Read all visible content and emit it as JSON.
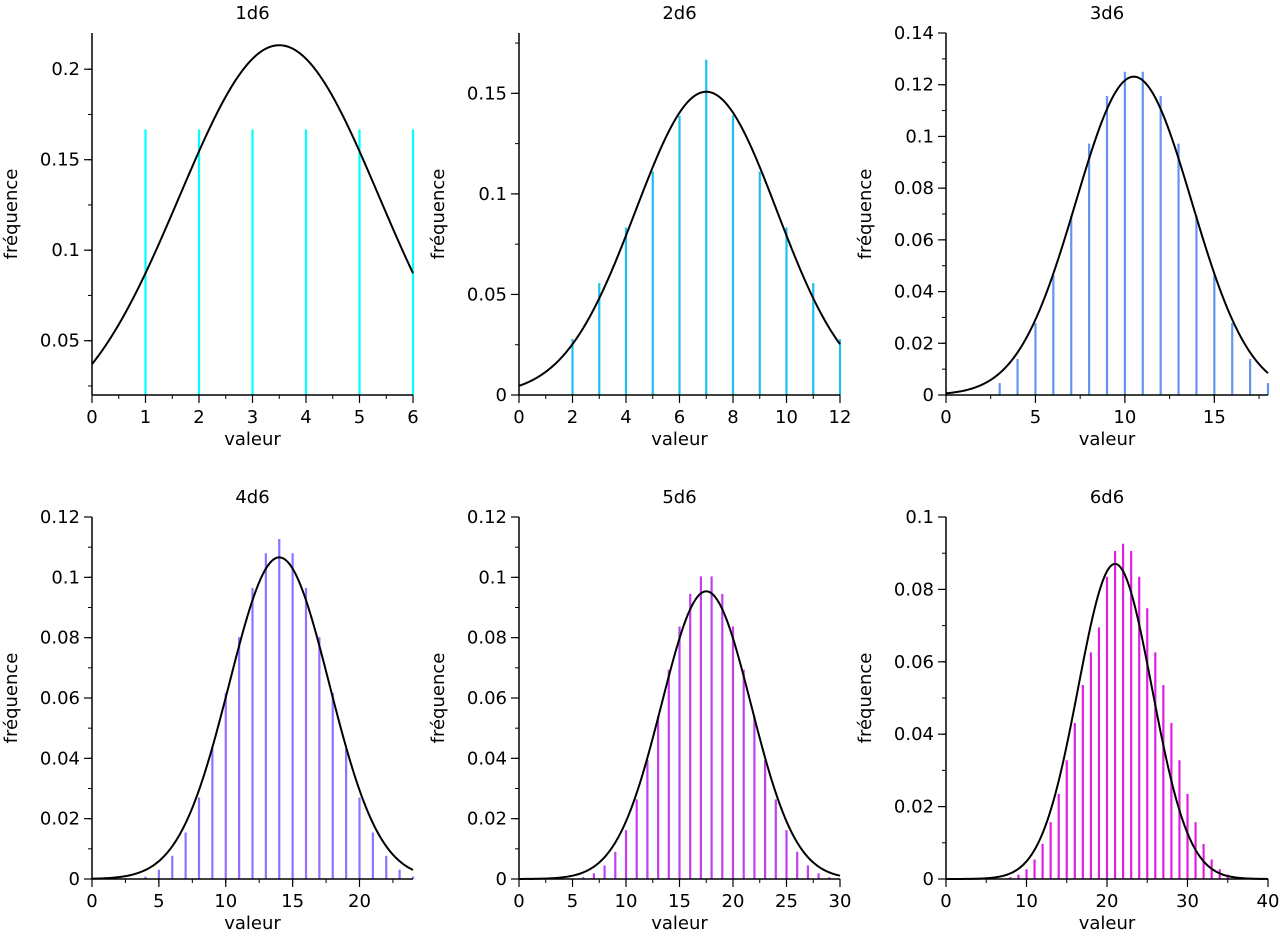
{
  "chart_data": [
    {
      "type": "bar",
      "title": "1d6",
      "xlabel": "valeur",
      "ylabel": "fréquence",
      "xlim": [
        0,
        6
      ],
      "ylim": [
        0.02,
        0.22
      ],
      "xticks": [
        0,
        1,
        2,
        3,
        4,
        5,
        6
      ],
      "xtick_labels": [
        "0",
        "1",
        "2",
        "3",
        "4",
        "5",
        "6"
      ],
      "yticks": [
        0.05,
        0.1,
        0.15,
        0.2
      ],
      "ytick_labels": [
        "0.05",
        "0.1",
        "0.15",
        "0.2"
      ],
      "bar_color": "#00ffff",
      "bars": {
        "x": [
          1,
          2,
          3,
          4,
          5,
          6
        ],
        "values": [
          0.1667,
          0.1667,
          0.1667,
          0.1667,
          0.1667,
          0.1667
        ]
      },
      "curve": {
        "type": "normal",
        "mean": 3.5,
        "sd": 1.8708,
        "color": "#000000"
      }
    },
    {
      "type": "bar",
      "title": "2d6",
      "xlabel": "valeur",
      "ylabel": "fréquence",
      "xlim": [
        0,
        12
      ],
      "ylim": [
        0,
        0.18
      ],
      "xticks": [
        0,
        2,
        4,
        6,
        8,
        10,
        12
      ],
      "xtick_labels": [
        "0",
        "2",
        "4",
        "6",
        "8",
        "10",
        "12"
      ],
      "yticks": [
        0,
        0.05,
        0.1,
        0.15
      ],
      "ytick_labels": [
        "0",
        "0.05",
        "0.1",
        "0.15"
      ],
      "bar_color": "#1fbfef",
      "bars": {
        "x": [
          2,
          3,
          4,
          5,
          6,
          7,
          8,
          9,
          10,
          11,
          12
        ],
        "values": [
          0.0278,
          0.0556,
          0.0833,
          0.1111,
          0.1389,
          0.1667,
          0.1389,
          0.1111,
          0.0833,
          0.0556,
          0.0278
        ]
      },
      "curve": {
        "type": "normal",
        "mean": 7,
        "sd": 2.6458,
        "color": "#000000"
      }
    },
    {
      "type": "bar",
      "title": "3d6",
      "xlabel": "valeur",
      "ylabel": "fréquence",
      "xlim": [
        0,
        18
      ],
      "ylim": [
        0,
        0.14
      ],
      "xticks": [
        0,
        5,
        10,
        15
      ],
      "xtick_labels": [
        "0",
        "5",
        "10",
        "15"
      ],
      "yticks": [
        0,
        0.02,
        0.04,
        0.06,
        0.08,
        0.1,
        0.12,
        0.14
      ],
      "ytick_labels": [
        "0",
        "0.02",
        "0.04",
        "0.06",
        "0.08",
        "0.1",
        "0.12",
        "0.14"
      ],
      "bar_color": "#6495ed",
      "bars": {
        "x": [
          3,
          4,
          5,
          6,
          7,
          8,
          9,
          10,
          11,
          12,
          13,
          14,
          15,
          16,
          17,
          18
        ],
        "values": [
          0.0046,
          0.0139,
          0.0278,
          0.0463,
          0.0694,
          0.0972,
          0.1157,
          0.125,
          0.125,
          0.1157,
          0.0972,
          0.0694,
          0.0463,
          0.0278,
          0.0139,
          0.0046
        ]
      },
      "curve": {
        "type": "normal",
        "mean": 10.5,
        "sd": 3.2404,
        "color": "#000000"
      }
    },
    {
      "type": "bar",
      "title": "4d6",
      "xlabel": "valeur",
      "ylabel": "fréquence",
      "xlim": [
        0,
        24
      ],
      "ylim": [
        0,
        0.12
      ],
      "xticks": [
        0,
        5,
        10,
        15,
        20
      ],
      "xtick_labels": [
        "0",
        "5",
        "10",
        "15",
        "20"
      ],
      "yticks": [
        0,
        0.02,
        0.04,
        0.06,
        0.08,
        0.1,
        0.12
      ],
      "ytick_labels": [
        "0",
        "0.02",
        "0.04",
        "0.06",
        "0.08",
        "0.1",
        "0.12"
      ],
      "bar_color": "#9370ff",
      "bars": {
        "x": [
          4,
          5,
          6,
          7,
          8,
          9,
          10,
          11,
          12,
          13,
          14,
          15,
          16,
          17,
          18,
          19,
          20,
          21,
          22,
          23,
          24
        ],
        "values": [
          0.0008,
          0.0031,
          0.0077,
          0.0154,
          0.027,
          0.0432,
          0.0617,
          0.0802,
          0.0965,
          0.108,
          0.1127,
          0.108,
          0.0965,
          0.0802,
          0.0617,
          0.0432,
          0.027,
          0.0154,
          0.0077,
          0.0031,
          0.0008
        ]
      },
      "curve": {
        "type": "normal",
        "mean": 14,
        "sd": 3.7417,
        "color": "#000000"
      }
    },
    {
      "type": "bar",
      "title": "5d6",
      "xlabel": "valeur",
      "ylabel": "fréquence",
      "xlim": [
        0,
        30
      ],
      "ylim": [
        0,
        0.12
      ],
      "xticks": [
        0,
        5,
        10,
        15,
        20,
        25,
        30
      ],
      "xtick_labels": [
        "0",
        "5",
        "10",
        "15",
        "20",
        "25",
        "30"
      ],
      "yticks": [
        0,
        0.02,
        0.04,
        0.06,
        0.08,
        0.1,
        0.12
      ],
      "ytick_labels": [
        "0",
        "0.02",
        "0.04",
        "0.06",
        "0.08",
        "0.1",
        "0.12"
      ],
      "bar_color": "#c040f0",
      "bars": {
        "x": [
          5,
          6,
          7,
          8,
          9,
          10,
          11,
          12,
          13,
          14,
          15,
          16,
          17,
          18,
          19,
          20,
          21,
          22,
          23,
          24,
          25,
          26,
          27,
          28,
          29,
          30
        ],
        "values": [
          0.0001,
          0.0006,
          0.0019,
          0.0045,
          0.009,
          0.0162,
          0.0264,
          0.0395,
          0.054,
          0.0694,
          0.0837,
          0.0945,
          0.1003,
          0.1003,
          0.0945,
          0.0837,
          0.0694,
          0.054,
          0.0395,
          0.0264,
          0.0162,
          0.009,
          0.0045,
          0.0019,
          0.0006,
          0.0001
        ]
      },
      "curve": {
        "type": "normal",
        "mean": 17.5,
        "sd": 4.1833,
        "color": "#000000"
      }
    },
    {
      "type": "bar",
      "title": "6d6",
      "xlabel": "valeur",
      "ylabel": "fréquence",
      "xlim": [
        0,
        40
      ],
      "ylim": [
        0,
        0.1
      ],
      "xticks": [
        0,
        10,
        20,
        30,
        40
      ],
      "xtick_labels": [
        "0",
        "10",
        "20",
        "30",
        "40"
      ],
      "yticks": [
        0,
        0.02,
        0.04,
        0.06,
        0.08,
        0.1
      ],
      "ytick_labels": [
        "0",
        "0.02",
        "0.04",
        "0.06",
        "0.08",
        "0.1"
      ],
      "bar_color": "#e020e0",
      "bars": {
        "x": [
          6,
          7,
          8,
          9,
          10,
          11,
          12,
          13,
          14,
          15,
          16,
          17,
          18,
          19,
          20,
          21,
          22,
          23,
          24,
          25,
          26,
          27,
          28,
          29,
          30,
          31,
          32,
          33,
          34,
          35,
          36
        ],
        "values": [
          0.0,
          0.0001,
          0.0005,
          0.0012,
          0.0027,
          0.0054,
          0.0097,
          0.0157,
          0.0235,
          0.0328,
          0.0431,
          0.0536,
          0.0626,
          0.0695,
          0.0835,
          0.0906,
          0.0926,
          0.0906,
          0.0835,
          0.0748,
          0.0626,
          0.0536,
          0.0431,
          0.0328,
          0.0235,
          0.0157,
          0.0097,
          0.0054,
          0.0027,
          0.0012,
          0.0005
        ]
      },
      "curve": {
        "type": "normal",
        "mean": 21,
        "sd": 4.5826,
        "color": "#000000"
      }
    }
  ]
}
